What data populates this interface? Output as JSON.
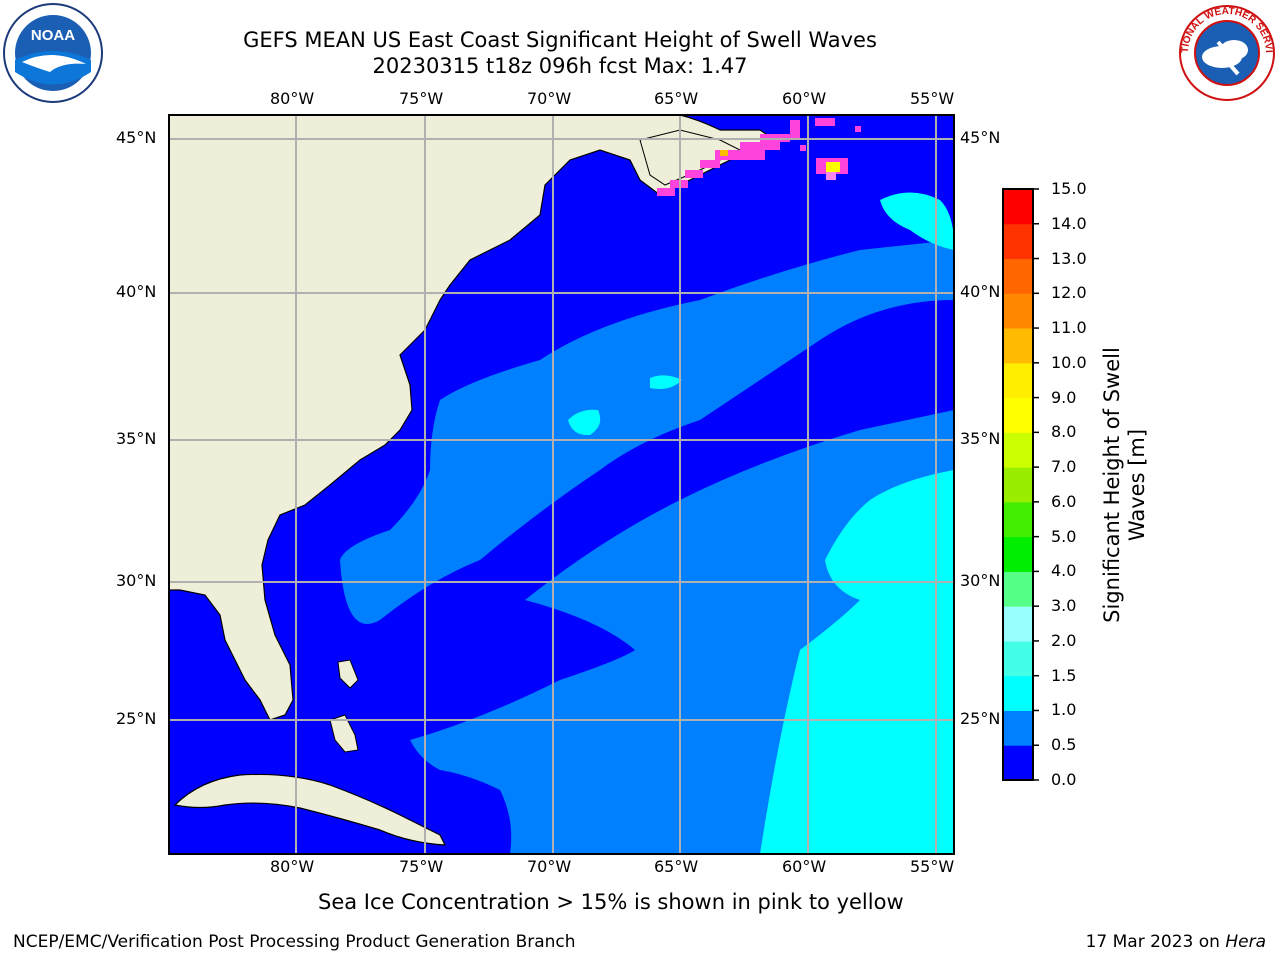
{
  "title": {
    "line1": "GEFS MEAN US East Coast Significant Height of Swell Waves",
    "line2": "20230315 t18z 096h fcst   Max: 1.47"
  },
  "map": {
    "lon_labels": [
      "80°W",
      "75°W",
      "70°W",
      "65°W",
      "60°W",
      "55°W"
    ],
    "lat_labels": [
      "45°N",
      "40°N",
      "35°N",
      "30°N",
      "25°N"
    ],
    "colors": {
      "land": "#efeed9",
      "band_0_0_5": "#0000ff",
      "band_0_5_1_0": "#0080ff",
      "band_1_0_1_5": "#00ffff",
      "sea_ice_pink": "#ff44dd",
      "sea_ice_yellow": "#ffff00",
      "grid": "#b0b0b0"
    }
  },
  "colorbar": {
    "title": "Significant Height of Swell Waves [m]",
    "ticks": [
      "15.0",
      "14.0",
      "13.0",
      "12.0",
      "11.0",
      "10.0",
      "9.0",
      "8.0",
      "7.0",
      "6.0",
      "5.0",
      "4.0",
      "3.0",
      "2.0",
      "1.5",
      "1.0",
      "0.5",
      "0.0"
    ],
    "colors": [
      "#0000ff",
      "#0080ff",
      "#00ffff",
      "#44ffe8",
      "#99ffff",
      "#55ff88",
      "#00ee00",
      "#44ee00",
      "#99ee00",
      "#ccff00",
      "#ffff00",
      "#ffee00",
      "#ffbb00",
      "#ff8800",
      "#ff6600",
      "#ff3300",
      "#ff0000"
    ]
  },
  "note": "Sea Ice Concentration > 15% is shown in pink to yellow",
  "footer": {
    "left": "NCEP/EMC/Verification Post Processing Product Generation Branch",
    "right_date": "17 Mar 2023 on ",
    "right_host": "Hera"
  },
  "logos": {
    "noaa_text": "NOAA",
    "nws_text": "NATIONAL WEATHER SERVICE"
  }
}
